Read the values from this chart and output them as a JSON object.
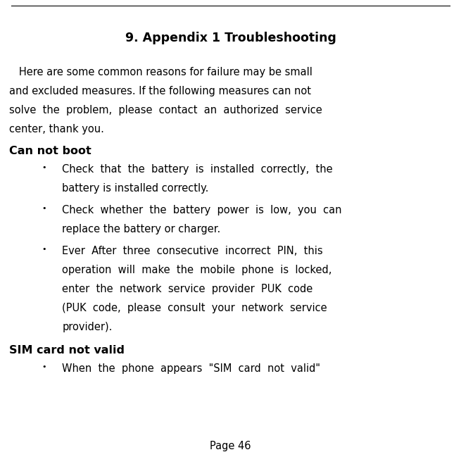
{
  "title": "9. Appendix 1 Troubleshooting",
  "background_color": "#ffffff",
  "text_color": "#000000",
  "page_label": "Page 46",
  "title_fontsize": 12.5,
  "body_fontsize": 10.5,
  "bold_fontsize": 11.5,
  "bullet_fontsize": 8,
  "intro_lines": [
    "   Here are some common reasons for failure may be small",
    "and excluded measures. If the following measures can not",
    "solve  the  problem,  please  contact  an  authorized  service",
    "center, thank you."
  ],
  "section1_heading": "Can not boot",
  "bullets1": [
    [
      "Check  that  the  battery  is  installed  correctly,  the",
      "battery is installed correctly."
    ],
    [
      "Check  whether  the  battery  power  is  low,  you  can",
      "replace the battery or charger."
    ],
    [
      "Ever  After  three  consecutive  incorrect  PIN,  this",
      "operation  will  make  the  mobile  phone  is  locked,",
      "enter  the  network  service  provider  PUK  code",
      "(PUK  code,  please  consult  your  network  service",
      "provider)."
    ]
  ],
  "section2_heading": "SIM card not valid",
  "bullets2": [
    [
      "When  the  phone  appears  \"SIM  card  not  valid\""
    ]
  ],
  "figwidth": 6.55,
  "figheight": 6.49,
  "dpi": 100
}
